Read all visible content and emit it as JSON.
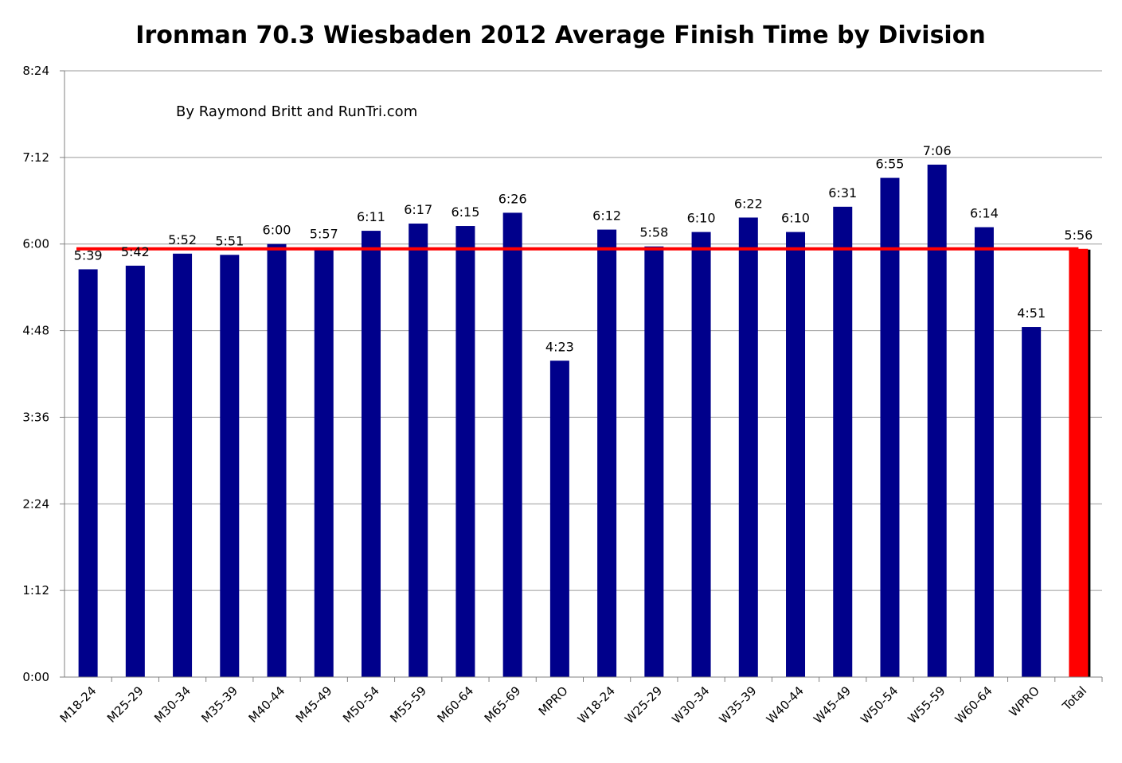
{
  "chart_data": {
    "type": "bar",
    "title": "Ironman 70.3 Wiesbaden 2012 Average Finish Time by Division",
    "subtitle": "By Raymond Britt and RunTri.com",
    "xlabel": "",
    "ylabel": "",
    "y_unit": "minutes",
    "ylim": [
      0,
      504
    ],
    "yticks": [
      0,
      72,
      144,
      216,
      288,
      360,
      432,
      504
    ],
    "ytick_labels": [
      "0:00",
      "1:12",
      "2:24",
      "3:36",
      "4:48",
      "6:00",
      "7:12",
      "8:24"
    ],
    "grid": true,
    "categories": [
      "M18-24",
      "M25-29",
      "M30-34",
      "M35-39",
      "M40-44",
      "M45-49",
      "M50-54",
      "M55-59",
      "M60-64",
      "M65-69",
      "MPRO",
      "W18-24",
      "W25-29",
      "W30-34",
      "W35-39",
      "W40-44",
      "W45-49",
      "W50-54",
      "W55-59",
      "W60-64",
      "WPRO",
      "Total"
    ],
    "values": [
      339,
      342,
      352,
      351,
      360,
      357,
      371,
      377,
      375,
      386,
      263,
      372,
      358,
      370,
      382,
      370,
      391,
      415,
      426,
      374,
      291,
      356
    ],
    "data_labels": [
      "5:39",
      "5:42",
      "5:52",
      "5:51",
      "6:00",
      "5:57",
      "6:11",
      "6:17",
      "6:15",
      "6:26",
      "4:23",
      "6:12",
      "5:58",
      "6:10",
      "6:22",
      "6:10",
      "6:31",
      "6:55",
      "7:06",
      "6:14",
      "4:51",
      "5:56"
    ],
    "bar_color": "#00008B",
    "highlight_category": "Total",
    "highlight_color": "#FF0000",
    "reference_line": {
      "value": 356,
      "color": "#FF0000"
    }
  }
}
